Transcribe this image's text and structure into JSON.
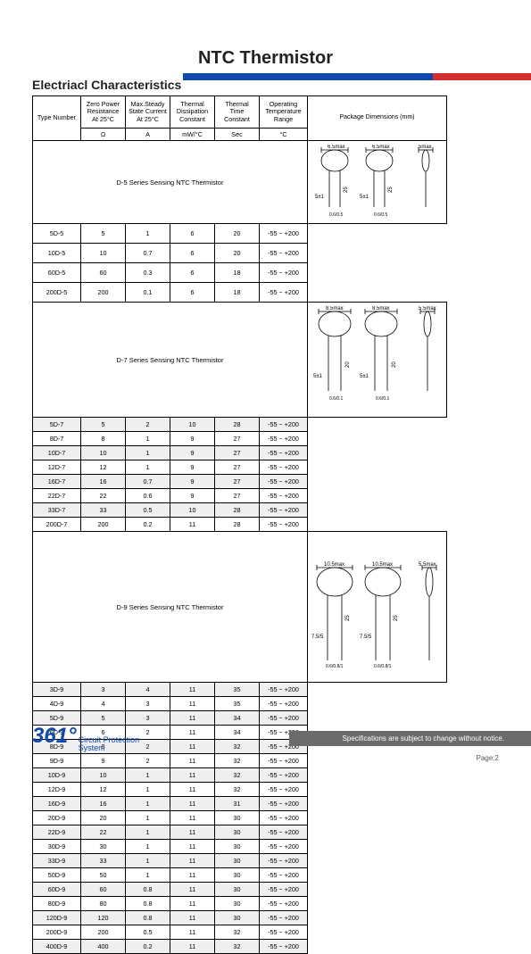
{
  "title": "NTC Thermistor",
  "section_title": "Electriacl Characteristics",
  "headers": {
    "type": "Type Number",
    "zpr": "Zero Power Resistance At 25°C",
    "msc": "Max.Steady State Current At 25°C",
    "tdc": "Thermal Dissipation Constant",
    "ttc": "Thermal Time Constant",
    "otr": "Operating Temperature Range",
    "pkg": "Package Dimensions (mm)"
  },
  "units": {
    "ohm": "Ω",
    "amp": "A",
    "mwc": "mW/°C",
    "sec": "Sec",
    "deg": "°C"
  },
  "series": {
    "d5": "D-5 Series Sensing NTC Thermistor",
    "d7": "D-7 Series Sensing NTC Thermistor",
    "d9": "D-9 Series Sensing NTC Thermistor"
  },
  "d5_rows": [
    {
      "tn": "5D-5",
      "r": "5",
      "a": "1",
      "d": "6",
      "t": "20",
      "o": "-55 ~ +200"
    },
    {
      "tn": "10D-5",
      "r": "10",
      "a": "0.7",
      "d": "6",
      "t": "20",
      "o": "-55 ~ +200"
    },
    {
      "tn": "60D-5",
      "r": "60",
      "a": "0.3",
      "d": "6",
      "t": "18",
      "o": "-55 ~ +200"
    },
    {
      "tn": "200D-5",
      "r": "200",
      "a": "0.1",
      "d": "6",
      "t": "18",
      "o": "-55 ~ +200"
    }
  ],
  "d7_rows": [
    {
      "tn": "5D-7",
      "r": "5",
      "a": "2",
      "d": "10",
      "t": "28",
      "o": "-55 ~ +200"
    },
    {
      "tn": "8D-7",
      "r": "8",
      "a": "1",
      "d": "9",
      "t": "27",
      "o": "-55 ~ +200"
    },
    {
      "tn": "10D-7",
      "r": "10",
      "a": "1",
      "d": "9",
      "t": "27",
      "o": "-55 ~ +200"
    },
    {
      "tn": "12D-7",
      "r": "12",
      "a": "1",
      "d": "9",
      "t": "27",
      "o": "-55 ~ +200"
    },
    {
      "tn": "16D-7",
      "r": "16",
      "a": "0.7",
      "d": "9",
      "t": "27",
      "o": "-55 ~ +200"
    },
    {
      "tn": "22D-7",
      "r": "22",
      "a": "0.6",
      "d": "9",
      "t": "27",
      "o": "-55 ~ +200"
    },
    {
      "tn": "33D-7",
      "r": "33",
      "a": "0.5",
      "d": "10",
      "t": "28",
      "o": "-55 ~ +200"
    },
    {
      "tn": "200D-7",
      "r": "200",
      "a": "0.2",
      "d": "11",
      "t": "28",
      "o": "-55 ~ +200"
    }
  ],
  "d9_rows": [
    {
      "tn": "3D-9",
      "r": "3",
      "a": "4",
      "d": "11",
      "t": "35",
      "o": "-55 ~ +200"
    },
    {
      "tn": "4D-9",
      "r": "4",
      "a": "3",
      "d": "11",
      "t": "35",
      "o": "-55 ~ +200"
    },
    {
      "tn": "5D-9",
      "r": "5",
      "a": "3",
      "d": "11",
      "t": "34",
      "o": "-55 ~ +200"
    },
    {
      "tn": "6D-9",
      "r": "6",
      "a": "2",
      "d": "11",
      "t": "34",
      "o": "-55 ~ +200"
    },
    {
      "tn": "8D-9",
      "r": "8",
      "a": "2",
      "d": "11",
      "t": "32",
      "o": "-55 ~ +200"
    },
    {
      "tn": "9D-9",
      "r": "9",
      "a": "2",
      "d": "11",
      "t": "32",
      "o": "-55 ~ +200"
    },
    {
      "tn": "10D-9",
      "r": "10",
      "a": "1",
      "d": "11",
      "t": "32",
      "o": "-55 ~ +200"
    },
    {
      "tn": "12D-9",
      "r": "12",
      "a": "1",
      "d": "11",
      "t": "32",
      "o": "-55 ~ +200"
    },
    {
      "tn": "16D-9",
      "r": "16",
      "a": "1",
      "d": "11",
      "t": "31",
      "o": "-55 ~ +200"
    },
    {
      "tn": "20D-9",
      "r": "20",
      "a": "1",
      "d": "11",
      "t": "30",
      "o": "-55 ~ +200"
    },
    {
      "tn": "22D-9",
      "r": "22",
      "a": "1",
      "d": "11",
      "t": "30",
      "o": "-55 ~ +200"
    },
    {
      "tn": "30D-9",
      "r": "30",
      "a": "1",
      "d": "11",
      "t": "30",
      "o": "-55 ~ +200"
    },
    {
      "tn": "33D-9",
      "r": "33",
      "a": "1",
      "d": "11",
      "t": "30",
      "o": "-55 ~ +200"
    },
    {
      "tn": "50D-9",
      "r": "50",
      "a": "1",
      "d": "11",
      "t": "30",
      "o": "-55 ~ +200"
    },
    {
      "tn": "60D-9",
      "r": "60",
      "a": "0.8",
      "d": "11",
      "t": "30",
      "o": "-55 ~ +200"
    },
    {
      "tn": "80D-9",
      "r": "80",
      "a": "0.8",
      "d": "11",
      "t": "30",
      "o": "-55 ~ +200"
    },
    {
      "tn": "120D-9",
      "r": "120",
      "a": "0.8",
      "d": "11",
      "t": "30",
      "o": "-55 ~ +200"
    },
    {
      "tn": "200D-9",
      "r": "200",
      "a": "0.5",
      "d": "11",
      "t": "32",
      "o": "-55 ~ +200"
    },
    {
      "tn": "400D-9",
      "r": "400",
      "a": "0.2",
      "d": "11",
      "t": "32",
      "o": "-55 ~ +200"
    }
  ],
  "diagrams": {
    "d5": {
      "dia": "6.5max",
      "lead": "25",
      "pitch": "5±1",
      "wire": "0.6/0.5",
      "tail": "5max"
    },
    "d7": {
      "dia": "8.5max",
      "lead": "20",
      "pitch": "5±1",
      "wire": "0.6/0.1",
      "tail": "5.5max"
    },
    "d9": {
      "dia": "10.5max",
      "lead": "25",
      "pitch": "7.5/5",
      "wire": "0.6/0.8/1",
      "tail": "5.5max"
    }
  },
  "logo": {
    "num": "361°",
    "line1": "Circuit Protection",
    "line2": "System"
  },
  "footer_note": "Specifications are subject to change without notice.",
  "page": "Page:2"
}
